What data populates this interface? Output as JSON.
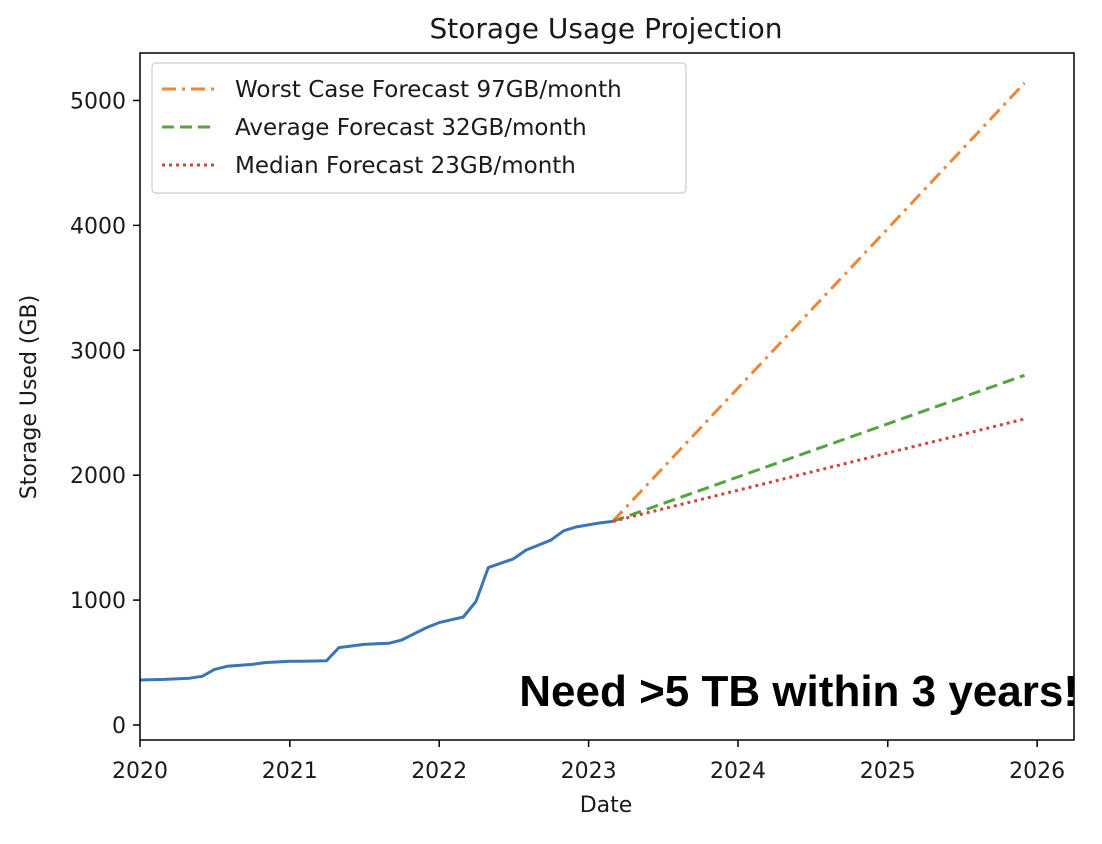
{
  "chart_data": {
    "type": "line",
    "title": "Storage Usage Projection",
    "xlabel": "Date",
    "ylabel": "Storage Used (GB)",
    "x_axis_type": "date",
    "xlim": [
      "2020-01-01",
      "2026-04-01"
    ],
    "ylim": [
      -120,
      5380
    ],
    "x_ticks": [
      "2020",
      "2021",
      "2022",
      "2023",
      "2024",
      "2025",
      "2026"
    ],
    "y_ticks": [
      0,
      1000,
      2000,
      3000,
      4000,
      5000
    ],
    "grid": false,
    "legend_position": "top-left",
    "annotation": "Need >5 TB within 3 years!",
    "series": [
      {
        "name": "",
        "color": "#3a75b5",
        "style": "solid",
        "points": [
          [
            "2020-01-01",
            360
          ],
          [
            "2020-03-01",
            365
          ],
          [
            "2020-05-01",
            375
          ],
          [
            "2020-06-01",
            390
          ],
          [
            "2020-07-01",
            445
          ],
          [
            "2020-08-01",
            470
          ],
          [
            "2020-10-01",
            485
          ],
          [
            "2020-11-01",
            500
          ],
          [
            "2021-01-01",
            510
          ],
          [
            "2021-02-01",
            510
          ],
          [
            "2021-04-01",
            515
          ],
          [
            "2021-05-01",
            620
          ],
          [
            "2021-07-01",
            645
          ],
          [
            "2021-09-01",
            655
          ],
          [
            "2021-10-01",
            680
          ],
          [
            "2021-12-01",
            780
          ],
          [
            "2022-01-01",
            820
          ],
          [
            "2022-03-01",
            865
          ],
          [
            "2022-04-01",
            990
          ],
          [
            "2022-05-01",
            1260
          ],
          [
            "2022-07-01",
            1330
          ],
          [
            "2022-08-01",
            1400
          ],
          [
            "2022-10-01",
            1480
          ],
          [
            "2022-11-01",
            1555
          ],
          [
            "2022-12-01",
            1585
          ],
          [
            "2023-02-01",
            1620
          ],
          [
            "2023-03-01",
            1630
          ]
        ]
      },
      {
        "name": "Worst Case Forecast 97GB/month",
        "color": "#ef8636",
        "style": "dashdot",
        "points": [
          [
            "2023-03-01",
            1630
          ],
          [
            "2025-12-01",
            5140
          ]
        ]
      },
      {
        "name": "Average Forecast 32GB/month",
        "color": "#53a441",
        "style": "dashed",
        "points": [
          [
            "2023-03-01",
            1630
          ],
          [
            "2025-12-01",
            2800
          ]
        ]
      },
      {
        "name": "Median Forecast 23GB/month",
        "color": "#d0453b",
        "style": "dotted",
        "points": [
          [
            "2023-03-01",
            1630
          ],
          [
            "2025-12-01",
            2450
          ]
        ]
      }
    ]
  }
}
